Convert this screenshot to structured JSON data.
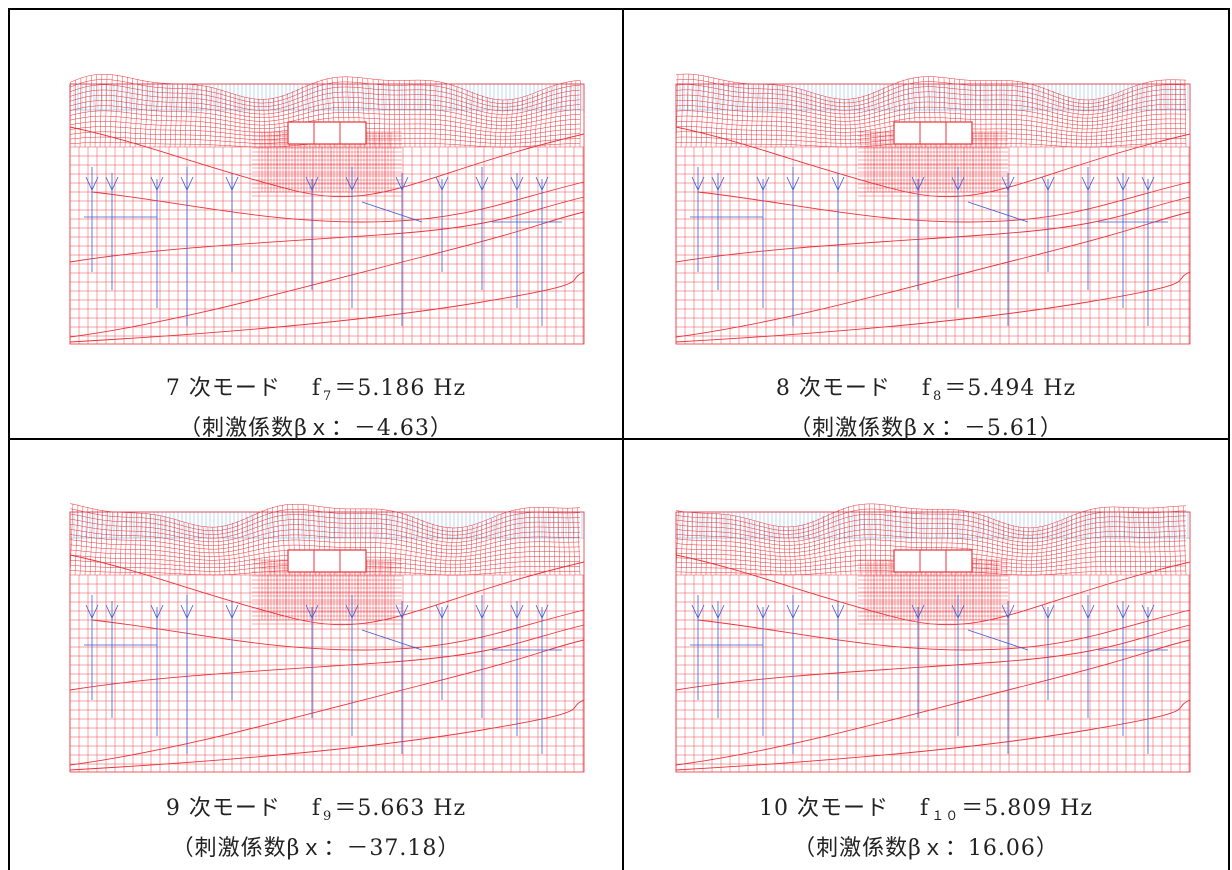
{
  "panels": [
    {
      "mode": "7 次モード",
      "freq_symbol": "f",
      "freq_sub": "7",
      "freq_value": "＝5.186 Hz",
      "participation": "（刺激係数βｘ：－4.63）",
      "phase": 0.0
    },
    {
      "mode": "8 次モード",
      "freq_symbol": "f",
      "freq_sub": "8",
      "freq_value": "＝5.494 Hz",
      "participation": "（刺激係数βｘ：－5.61）",
      "phase": 0.6
    },
    {
      "mode": "9 次モード",
      "freq_symbol": "f",
      "freq_sub": "9",
      "freq_value": "＝5.663 Hz",
      "participation": "（刺激係数βｘ：－37.18）",
      "phase": 1.3
    },
    {
      "mode": "10 次モード",
      "freq_symbol": "f",
      "freq_sub": "１０",
      "freq_value": "＝5.809 Hz",
      "participation": "（刺激係数βｘ：16.06）",
      "phase": 2.1
    }
  ],
  "colors": {
    "deformed_mesh": "#e8333a",
    "original_mesh": "#3a5bd8",
    "surface_mesh": "#7fb2e0",
    "structure": "#ffffff",
    "border": "#000000"
  }
}
